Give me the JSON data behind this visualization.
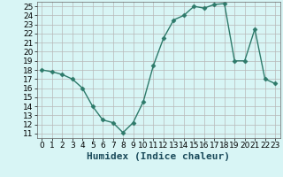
{
  "x": [
    0,
    1,
    2,
    3,
    4,
    5,
    6,
    7,
    8,
    9,
    10,
    11,
    12,
    13,
    14,
    15,
    16,
    17,
    18,
    19,
    20,
    21,
    22,
    23
  ],
  "y": [
    18,
    17.8,
    17.5,
    17,
    16,
    14,
    12.5,
    12.2,
    11.1,
    12.2,
    14.5,
    18.5,
    21.5,
    23.5,
    24,
    25,
    24.8,
    25.2,
    25.3,
    19,
    19,
    22.5,
    17,
    16.5
  ],
  "line_color": "#2d7a6a",
  "marker": "D",
  "marker_size": 2.5,
  "bg_color": "#d8f5f5",
  "grid_major_color": "#b8b8b8",
  "grid_minor_color": "#d0e8e8",
  "xlabel": "Humidex (Indice chaleur)",
  "xlabel_fontsize": 8,
  "ylim": [
    10.5,
    25.5
  ],
  "xlim": [
    -0.5,
    23.5
  ],
  "yticks": [
    11,
    12,
    13,
    14,
    15,
    16,
    17,
    18,
    19,
    20,
    21,
    22,
    23,
    24,
    25
  ],
  "xticks": [
    0,
    1,
    2,
    3,
    4,
    5,
    6,
    7,
    8,
    9,
    10,
    11,
    12,
    13,
    14,
    15,
    16,
    17,
    18,
    19,
    20,
    21,
    22,
    23
  ],
  "tick_fontsize": 6.5,
  "linewidth": 1.0
}
